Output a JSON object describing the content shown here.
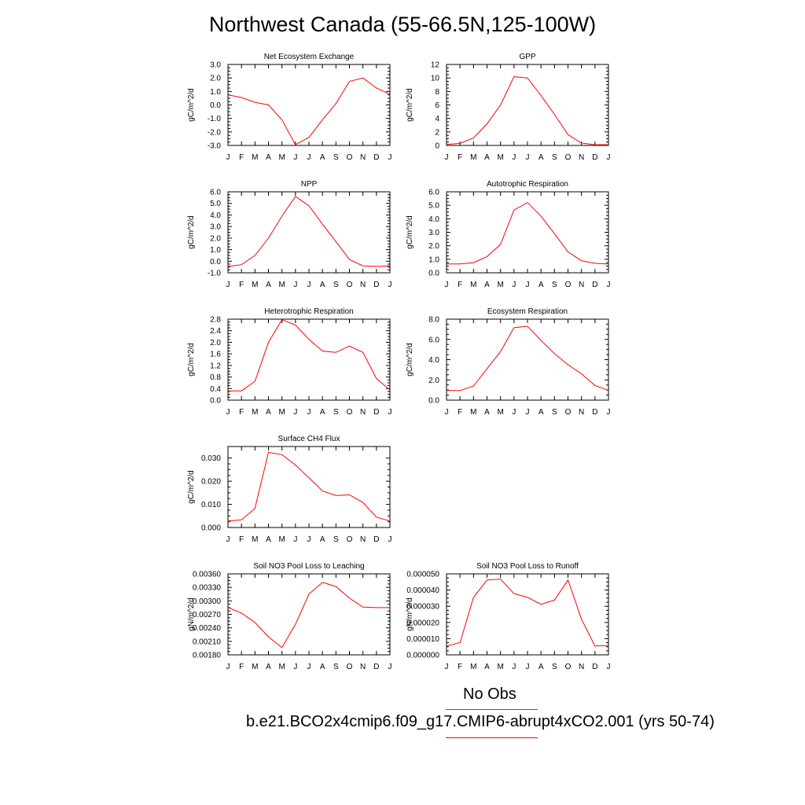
{
  "page_title": "Northwest Canada (55-66.5N,125-100W)",
  "legend": {
    "obs_label": "No Obs",
    "obs_color": "#4a4ae0",
    "model_label": "b.e21.BCO2x4cmip6.f09_g17.CMIP6-abrupt4xCO2.001 (yrs 50-74)",
    "model_color": "#ff0000"
  },
  "chart_data": [
    {
      "type": "line",
      "title": "Net Ecosystem Exchange",
      "ylabel": "gC/m^2/d",
      "x": [
        "J",
        "F",
        "M",
        "A",
        "M",
        "J",
        "J",
        "A",
        "S",
        "O",
        "N",
        "D",
        "J"
      ],
      "ylim": [
        -3.0,
        3.0
      ],
      "yticks": [
        -3.0,
        -2.0,
        -1.0,
        0.0,
        1.0,
        2.0,
        3.0
      ],
      "ytick_labels": [
        "-3.0",
        "-2.0",
        "-1.0",
        "0.0",
        "1.0",
        "2.0",
        "3.0"
      ],
      "series": [
        {
          "values": [
            0.75,
            0.55,
            0.2,
            0.0,
            -1.1,
            -2.95,
            -2.4,
            -1.1,
            0.1,
            1.75,
            2.0,
            1.25,
            0.8
          ],
          "color": "#ff0000"
        }
      ]
    },
    {
      "type": "line",
      "title": "GPP",
      "ylabel": "gC/m^2/d",
      "x": [
        "J",
        "F",
        "M",
        "A",
        "M",
        "J",
        "J",
        "A",
        "S",
        "O",
        "N",
        "D",
        "J"
      ],
      "ylim": [
        0,
        12
      ],
      "yticks": [
        0,
        2,
        4,
        6,
        8,
        10,
        12
      ],
      "ytick_labels": [
        "0",
        "2",
        "4",
        "6",
        "8",
        "10",
        "12"
      ],
      "series": [
        {
          "values": [
            0.15,
            0.3,
            1.1,
            3.2,
            6.0,
            10.2,
            10.0,
            7.4,
            4.6,
            1.6,
            0.35,
            0.1,
            0.1
          ],
          "color": "#ff0000"
        }
      ]
    },
    {
      "type": "line",
      "title": "NPP",
      "ylabel": "gC/m^2/d",
      "x": [
        "J",
        "F",
        "M",
        "A",
        "M",
        "J",
        "J",
        "A",
        "S",
        "O",
        "N",
        "D",
        "J"
      ],
      "ylim": [
        -1.0,
        6.0
      ],
      "yticks": [
        -1.0,
        0.0,
        1.0,
        2.0,
        3.0,
        4.0,
        5.0,
        6.0
      ],
      "ytick_labels": [
        "-1.0",
        "0.0",
        "1.0",
        "2.0",
        "3.0",
        "4.0",
        "5.0",
        "6.0"
      ],
      "series": [
        {
          "values": [
            -0.45,
            -0.3,
            0.5,
            2.0,
            3.9,
            5.6,
            4.8,
            3.2,
            1.7,
            0.15,
            -0.4,
            -0.45,
            -0.4
          ],
          "color": "#ff0000"
        }
      ]
    },
    {
      "type": "line",
      "title": "Autotrophic Respiration",
      "ylabel": "gC/m^2/d",
      "x": [
        "J",
        "F",
        "M",
        "A",
        "M",
        "J",
        "J",
        "A",
        "S",
        "O",
        "N",
        "D",
        "J"
      ],
      "ylim": [
        0.0,
        6.0
      ],
      "yticks": [
        0.0,
        1.0,
        2.0,
        3.0,
        4.0,
        5.0,
        6.0
      ],
      "ytick_labels": [
        "0.0",
        "1.0",
        "2.0",
        "3.0",
        "4.0",
        "5.0",
        "6.0"
      ],
      "series": [
        {
          "values": [
            0.65,
            0.65,
            0.75,
            1.2,
            2.1,
            4.65,
            5.2,
            4.2,
            2.9,
            1.55,
            0.9,
            0.7,
            0.65
          ],
          "color": "#ff0000"
        }
      ]
    },
    {
      "type": "line",
      "title": "Heterotrophic Respiration",
      "ylabel": "gC/m^2/d",
      "x": [
        "J",
        "F",
        "M",
        "A",
        "M",
        "J",
        "J",
        "A",
        "S",
        "O",
        "N",
        "D",
        "J"
      ],
      "ylim": [
        0.0,
        2.8
      ],
      "yticks": [
        0.0,
        0.4,
        0.8,
        1.2,
        1.6,
        2.0,
        2.4,
        2.8
      ],
      "ytick_labels": [
        "0.0",
        "0.4",
        "0.8",
        "1.2",
        "1.6",
        "2.0",
        "2.4",
        "2.8"
      ],
      "series": [
        {
          "values": [
            0.32,
            0.32,
            0.65,
            2.0,
            2.78,
            2.6,
            2.1,
            1.7,
            1.65,
            1.87,
            1.65,
            0.75,
            0.35
          ],
          "color": "#ff0000"
        }
      ]
    },
    {
      "type": "line",
      "title": "Ecosystem Respiration",
      "ylabel": "gC/m^2/d",
      "x": [
        "J",
        "F",
        "M",
        "A",
        "M",
        "J",
        "J",
        "A",
        "S",
        "O",
        "N",
        "D",
        "J"
      ],
      "ylim": [
        0.0,
        8.0
      ],
      "yticks": [
        0.0,
        2.0,
        4.0,
        6.0,
        8.0
      ],
      "ytick_labels": [
        "0.0",
        "2.0",
        "4.0",
        "6.0",
        "8.0"
      ],
      "series": [
        {
          "values": [
            0.95,
            0.95,
            1.4,
            3.1,
            4.8,
            7.15,
            7.3,
            5.9,
            4.6,
            3.5,
            2.6,
            1.45,
            0.95
          ],
          "color": "#ff0000"
        }
      ]
    },
    {
      "type": "line",
      "title": "Surface CH4 Flux",
      "ylabel": "gC/m^2/d",
      "x": [
        "J",
        "F",
        "M",
        "A",
        "M",
        "J",
        "J",
        "A",
        "S",
        "O",
        "N",
        "D",
        "J"
      ],
      "ylim": [
        0.0,
        0.035
      ],
      "yticks": [
        0.0,
        0.01,
        0.02,
        0.03
      ],
      "ytick_labels": [
        "0.000",
        "0.010",
        "0.020",
        "0.030"
      ],
      "series": [
        {
          "values": [
            0.0028,
            0.0033,
            0.0083,
            0.0325,
            0.0315,
            0.027,
            0.0215,
            0.0158,
            0.0138,
            0.0141,
            0.0108,
            0.0045,
            0.0028
          ],
          "color": "#ff0000"
        }
      ]
    },
    {
      "type": "line",
      "title": "Soil NO3 Pool Loss to Leaching",
      "ylabel": "gN/m^2/d",
      "x": [
        "J",
        "F",
        "M",
        "A",
        "M",
        "J",
        "J",
        "A",
        "S",
        "O",
        "N",
        "D",
        "J"
      ],
      "ylim": [
        0.0018,
        0.0036
      ],
      "yticks": [
        0.0018,
        0.0021,
        0.0024,
        0.0027,
        0.003,
        0.0033,
        0.0036
      ],
      "ytick_labels": [
        "0.00180",
        "0.00210",
        "0.00240",
        "0.00270",
        "0.00300",
        "0.00330",
        "0.00360"
      ],
      "series": [
        {
          "values": [
            0.00285,
            0.00273,
            0.00252,
            0.0022,
            0.00196,
            0.00248,
            0.00315,
            0.00341,
            0.00332,
            0.00306,
            0.00286,
            0.00285,
            0.00285
          ],
          "color": "#ff0000"
        }
      ]
    },
    {
      "type": "line",
      "title": "Soil NO3 Pool Loss to Runoff",
      "ylabel": "gN/m^2/d",
      "x": [
        "J",
        "F",
        "M",
        "A",
        "M",
        "J",
        "J",
        "A",
        "S",
        "O",
        "N",
        "D",
        "J"
      ],
      "ylim": [
        0.0,
        5e-05
      ],
      "yticks": [
        0.0,
        1e-05,
        2e-05,
        3e-05,
        4e-05,
        5e-05
      ],
      "ytick_labels": [
        "0.000000",
        "0.000010",
        "0.000020",
        "0.000030",
        "0.000040",
        "0.000050"
      ],
      "series": [
        {
          "values": [
            5.5e-06,
            7.5e-06,
            3.55e-05,
            4.62e-05,
            4.68e-05,
            3.78e-05,
            3.55e-05,
            3.12e-05,
            3.38e-05,
            4.62e-05,
            2.2e-05,
            5.5e-06,
            5.8e-06
          ],
          "color": "#ff0000"
        }
      ]
    }
  ]
}
